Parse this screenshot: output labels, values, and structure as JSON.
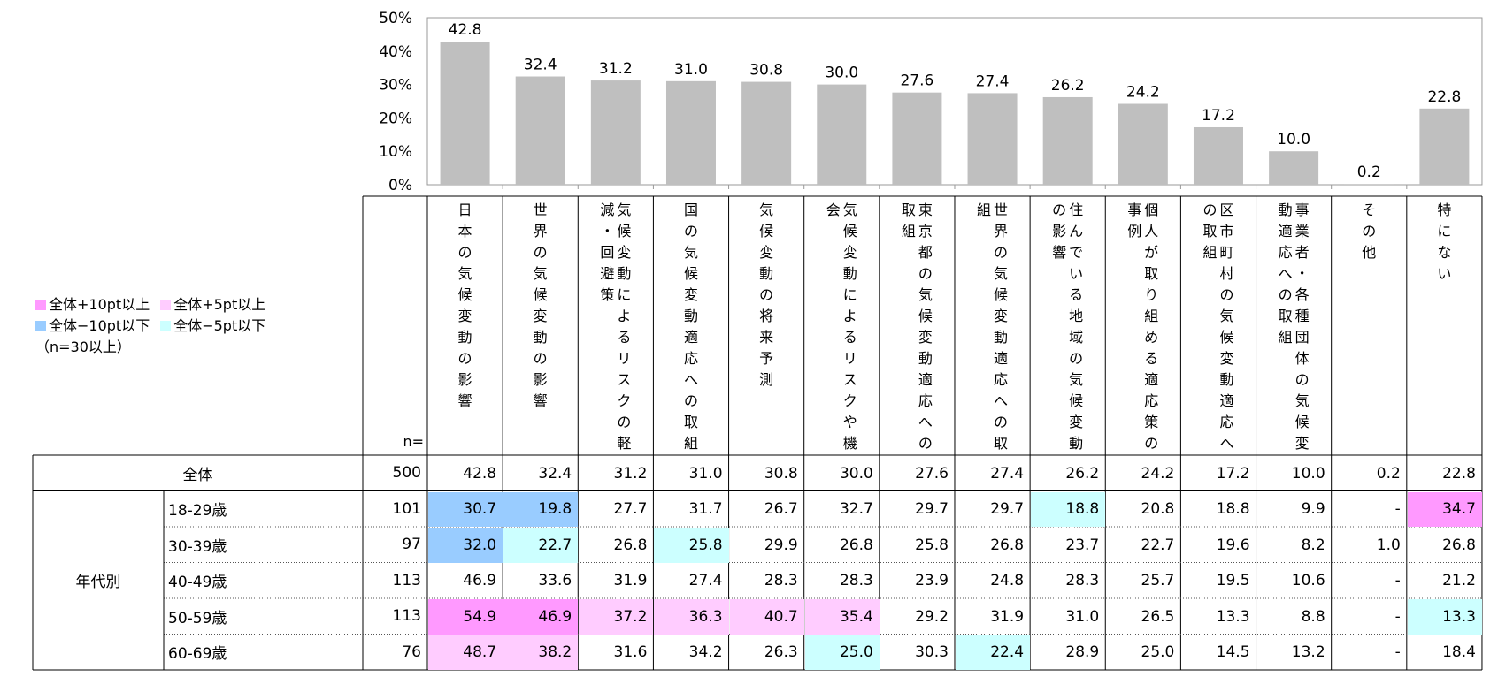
{
  "chart_data": {
    "type": "bar",
    "y_ticks": [
      "50%",
      "40%",
      "30%",
      "20%",
      "10%",
      "0%"
    ],
    "ylim": [
      0,
      50
    ],
    "bar_color": "#bfbfbf",
    "categories": [
      "日本の気候変動の影響",
      "世界の気候変動の影響",
      "気候変動によるリスクの軽減・回避策",
      "国の気候変動適応への取組",
      "気候変動の将来予測",
      "気候変動によるリスクや機会",
      "東京都の気候変動適応への取組",
      "世界の気候変動適応への取組",
      "住んでいる地域の気候変動の影響",
      "個人が取り組める適応策の事例",
      "区市町村の気候変動適応への取組",
      "事業者・各種団体の気候変動適応への取組",
      "その他",
      "特にない"
    ],
    "header_columns": [
      [
        "日本の気候変動の影響"
      ],
      [
        "世界の気候変動の影響"
      ],
      [
        "気候変動によるリスクの軽",
        "減・回避策"
      ],
      [
        "国の気候変動適応への取組"
      ],
      [
        "気候変動の将来予測"
      ],
      [
        "気候変動によるリスクや機",
        "会"
      ],
      [
        "東京都の気候変動適応への",
        "取組"
      ],
      [
        "世界の気候変動適応への取",
        "組"
      ],
      [
        "住んでいる地域の気候変動",
        "の影響"
      ],
      [
        "個人が取り組める適応策の",
        "事例"
      ],
      [
        "区市町村の気候変動適応へ",
        "の取組"
      ],
      [
        "事業者・各種団体の気候変",
        "動適応への取組"
      ],
      [
        "その他"
      ],
      [
        "特にない"
      ]
    ],
    "values": [
      42.8,
      32.4,
      31.2,
      31.0,
      30.8,
      30.0,
      27.6,
      27.4,
      26.2,
      24.2,
      17.2,
      10.0,
      0.2,
      22.8
    ],
    "value_labels": [
      "42.8",
      "32.4",
      "31.2",
      "31.0",
      "30.8",
      "30.0",
      "27.6",
      "27.4",
      "26.2",
      "24.2",
      "17.2",
      "10.0",
      "0.2",
      "22.8"
    ],
    "n_header": "n=",
    "group_label": "年代別",
    "rows": [
      {
        "label": "全体",
        "n": "500",
        "cells": [
          "42.8",
          "32.4",
          "31.2",
          "31.0",
          "30.8",
          "30.0",
          "27.6",
          "27.4",
          "26.2",
          "24.2",
          "17.2",
          "10.0",
          "0.2",
          "22.8"
        ],
        "hl": [
          "",
          "",
          "",
          "",
          "",
          "",
          "",
          "",
          "",
          "",
          "",
          "",
          "",
          ""
        ]
      },
      {
        "label": "18-29歳",
        "n": "101",
        "cells": [
          "30.7",
          "19.8",
          "27.7",
          "31.7",
          "26.7",
          "32.7",
          "29.7",
          "29.7",
          "18.8",
          "20.8",
          "18.8",
          "9.9",
          "-",
          "34.7"
        ],
        "hl": [
          "m10",
          "m10",
          "",
          "",
          "",
          "",
          "",
          "",
          "m5",
          "",
          "",
          "",
          "",
          "p10"
        ]
      },
      {
        "label": "30-39歳",
        "n": "97",
        "cells": [
          "32.0",
          "22.7",
          "26.8",
          "25.8",
          "29.9",
          "26.8",
          "25.8",
          "26.8",
          "23.7",
          "22.7",
          "19.6",
          "8.2",
          "1.0",
          "26.8"
        ],
        "hl": [
          "m10",
          "m5",
          "",
          "m5",
          "",
          "",
          "",
          "",
          "",
          "",
          "",
          "",
          "",
          ""
        ]
      },
      {
        "label": "40-49歳",
        "n": "113",
        "cells": [
          "46.9",
          "33.6",
          "31.9",
          "27.4",
          "28.3",
          "28.3",
          "23.9",
          "24.8",
          "28.3",
          "25.7",
          "19.5",
          "10.6",
          "-",
          "21.2"
        ],
        "hl": [
          "",
          "",
          "",
          "",
          "",
          "",
          "",
          "",
          "",
          "",
          "",
          "",
          "",
          ""
        ]
      },
      {
        "label": "50-59歳",
        "n": "113",
        "cells": [
          "54.9",
          "46.9",
          "37.2",
          "36.3",
          "40.7",
          "35.4",
          "29.2",
          "31.9",
          "31.0",
          "26.5",
          "13.3",
          "8.8",
          "-",
          "13.3"
        ],
        "hl": [
          "p10",
          "p10",
          "p5",
          "p5",
          "p5",
          "p5",
          "",
          "",
          "",
          "",
          "",
          "",
          "",
          "m5"
        ]
      },
      {
        "label": "60-69歳",
        "n": "76",
        "cells": [
          "48.7",
          "38.2",
          "31.6",
          "34.2",
          "26.3",
          "25.0",
          "30.3",
          "22.4",
          "28.9",
          "25.0",
          "14.5",
          "13.2",
          "-",
          "18.4"
        ],
        "hl": [
          "p5",
          "p5",
          "",
          "",
          "",
          "m5",
          "",
          "m5",
          "",
          "",
          "",
          "",
          "",
          ""
        ]
      }
    ],
    "legend": [
      {
        "key": "p10",
        "label": "全体+10pt以上",
        "color": "#ff99ff"
      },
      {
        "key": "p5",
        "label": "全体+5pt以上",
        "color": "#ffccff"
      },
      {
        "key": "m10",
        "label": "全体−10pt以下",
        "color": "#99ccff"
      },
      {
        "key": "m5",
        "label": "全体−5pt以下",
        "color": "#ccffff"
      }
    ],
    "legend_note": "（n=30以上）"
  }
}
